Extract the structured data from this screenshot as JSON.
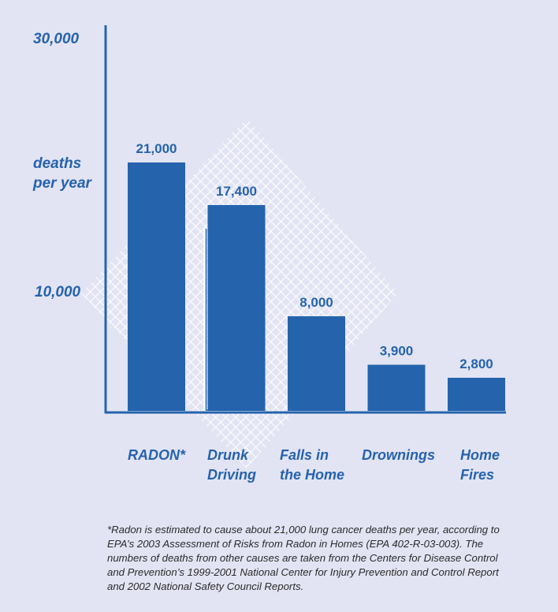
{
  "chart_data": {
    "type": "bar",
    "categories": [
      "RADON*",
      "Drunk\nDriving",
      "Falls in\nthe Home",
      "Drownings",
      "Home\nFires"
    ],
    "values": [
      21000,
      17400,
      8000,
      3900,
      2800
    ],
    "value_labels": [
      "21,000",
      "17,400",
      "8,000",
      "3,900",
      "2,800"
    ],
    "ylabel": "deaths\nper year",
    "yticks": [
      {
        "value": 30000,
        "label": "30,000"
      },
      {
        "value": 10000,
        "label": "10,000"
      }
    ],
    "ylim": [
      0,
      30000
    ],
    "grid": false,
    "colors": {
      "bar": "#2563ad",
      "axis": "#2563ad",
      "label": "#2563ad",
      "background": "#e3e4f3",
      "hatch": "#ffffff"
    }
  },
  "footnote": "*Radon is estimated to cause about 21,000 lung cancer deaths per year, according to EPA’s 2003 Assessment of Risks from Radon in Homes (EPA 402-R-03-003).  The numbers of deaths from other causes are taken from the Centers for Disease Control and Prevention’s 1999-2001 National Center for Injury Prevention and Control Report and 2002 National Safety Council Reports."
}
